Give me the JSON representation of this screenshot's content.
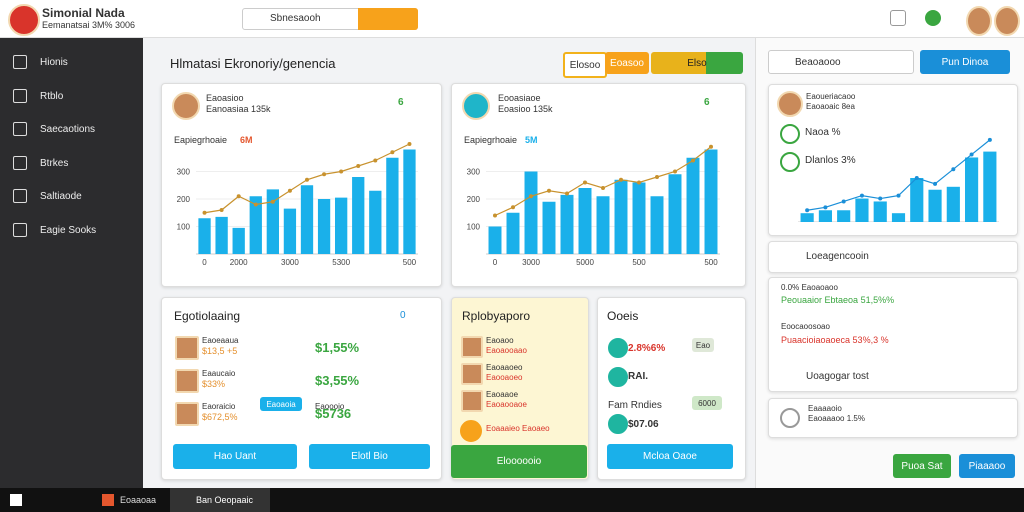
{
  "header": {
    "title": "Simonial Nada",
    "subtitle": "Eemanatsai 3M% 3006",
    "search": "Sbnesaooh"
  },
  "sidebar": {
    "items": [
      "Hionis",
      "Rtblo",
      "Saecaotions",
      "Btrkes",
      "Saltiaode",
      "Eagie Sooks"
    ]
  },
  "main": {
    "title": "Hlmatasi Ekronoriy/genencia",
    "tabs": [
      "Elosoo",
      "Eoasoo",
      "Elso"
    ]
  },
  "charts": [
    {
      "user": "Eaoasioo",
      "user_sub": "Eanoasiaa 135k",
      "toggle": "6",
      "caption": "Eapiegrhoaie",
      "caption_value": "6M",
      "ylim": [
        0,
        400
      ],
      "yticks": [
        100,
        200,
        300
      ],
      "categories": [
        "0",
        null,
        "2000",
        null,
        null,
        "3000",
        null,
        null,
        "5300",
        null,
        null,
        null,
        "500"
      ],
      "bars": [
        130,
        135,
        95,
        210,
        235,
        165,
        250,
        200,
        205,
        280,
        230,
        350,
        380
      ],
      "bar_color": "#1ab0ea",
      "line": [
        150,
        160,
        210,
        180,
        190,
        230,
        270,
        290,
        300,
        320,
        340,
        370,
        400
      ],
      "line_color": "#c8922e"
    },
    {
      "user": "Eooasiaoe",
      "user_sub": "Eoasioo 135k",
      "toggle": "6",
      "caption": "Eapiegrhoaie",
      "caption_value": "5M",
      "ylim": [
        0,
        400
      ],
      "yticks": [
        100,
        200,
        300
      ],
      "categories": [
        "0",
        null,
        "3000",
        null,
        null,
        "5000",
        null,
        null,
        "500",
        null,
        null,
        null,
        "500"
      ],
      "bars": [
        100,
        150,
        300,
        190,
        215,
        240,
        210,
        270,
        260,
        210,
        290,
        350,
        380
      ],
      "bar_color": "#1ab0ea",
      "line": [
        140,
        170,
        210,
        230,
        220,
        260,
        240,
        270,
        260,
        280,
        300,
        340,
        390
      ],
      "line_color": "#c8922e"
    },
    {
      "ylim": [
        0,
        300
      ],
      "bars": [
        30,
        40,
        40,
        80,
        70,
        30,
        150,
        110,
        120,
        220,
        240
      ],
      "bar_color": "#1ab0ea",
      "line": [
        40,
        50,
        70,
        90,
        80,
        90,
        150,
        130,
        180,
        230,
        280
      ],
      "line_color": "#1a8fd8"
    }
  ],
  "card_a": {
    "title": "Egotiolaaing",
    "toggle": "0",
    "rows": [
      {
        "name": "Eaoeaaua",
        "sub": "$13,5 +5",
        "amount": "$1,55%"
      },
      {
        "name": "Eaaucaio",
        "sub": "$33%",
        "amount": "$3,55%"
      },
      {
        "name": "Eaoraicio",
        "sub": "$672,5%",
        "amount": "$5736"
      }
    ],
    "badge": "Eaoaoia",
    "amount_sub": "Eaoooio",
    "buttons": [
      "Hao Uant",
      "Elotl Bio"
    ]
  },
  "card_b": {
    "title": "Rplobyaporo",
    "rows": [
      {
        "name": "Eaoaoo",
        "sub": "Eaoaooaao"
      },
      {
        "name": "Eaoaaoeo",
        "sub": "Eaooaoeo"
      },
      {
        "name": "Eaoaaoe",
        "sub": "Eaoaooaoe"
      }
    ],
    "highlight": "Eoaaaieo Eaoaeo",
    "button": "Eloooooio"
  },
  "card_c": {
    "title": "Ooeis",
    "rows": [
      {
        "label": "2.8%6%",
        "tag": "Eao"
      },
      {
        "label": "RAI."
      },
      {
        "label": "Fam Rndies",
        "tag": "6000",
        "value": "$07.06"
      }
    ],
    "button": "Mcloa Oaoe"
  },
  "right": {
    "search": "Beaoaooo",
    "search_btn": "Pun Dinoa",
    "profile_name": "Eaoueriacaoo",
    "profile_sub": "Eaoaoaic 8ea",
    "stats": [
      "Naoa %",
      "Dlanlos 3%"
    ],
    "rows": [
      "Loeagencooin",
      "0.0% Eaoaoaoo",
      "Peouaaior Ebtaeoa 51,5%%",
      "Eoocaoosoao",
      "Puaacioiaoaoeca 53%,3 %",
      "Uoagogar tost",
      "Eaaaaoio",
      "Eaoaaaoo 1.5%"
    ],
    "buttons": [
      "Puoa Sat",
      "Piaaaoo"
    ]
  },
  "taskbar": {
    "items": [
      "Eoaaoaa",
      "Ban Oeopaaic"
    ]
  }
}
